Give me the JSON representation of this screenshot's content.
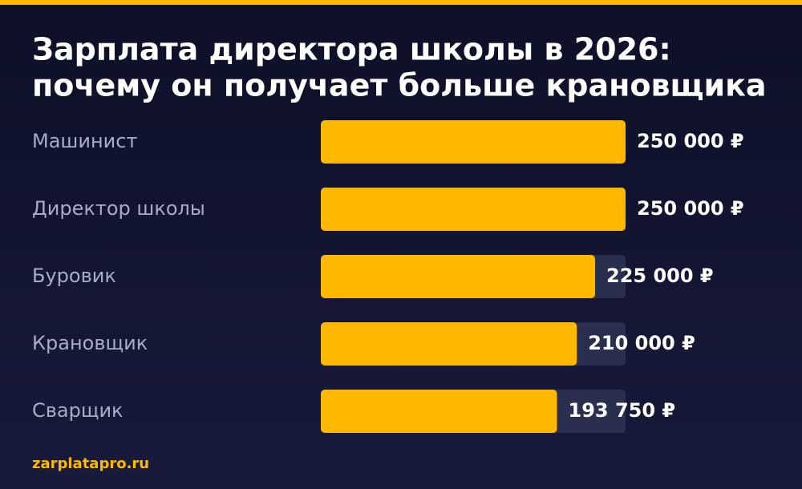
{
  "chart_data": {
    "type": "hbar",
    "title": [
      "Зарплата директора школы в 2026:",
      "почему он получает больше крановщика"
    ],
    "categories": [
      "Машинист",
      "Директор школы",
      "Буровик",
      "Крановщик",
      "Сварщик"
    ],
    "values": [
      250000,
      250000,
      225000,
      210000,
      193750
    ],
    "value_labels": [
      "250 000 ₽",
      "250 000 ₽",
      "225 000 ₽",
      "210 000 ₽",
      "193 750 ₽"
    ],
    "color": "#ffb800",
    "xlim": [
      0,
      250000
    ],
    "footer": "zarplatapro.ru"
  }
}
